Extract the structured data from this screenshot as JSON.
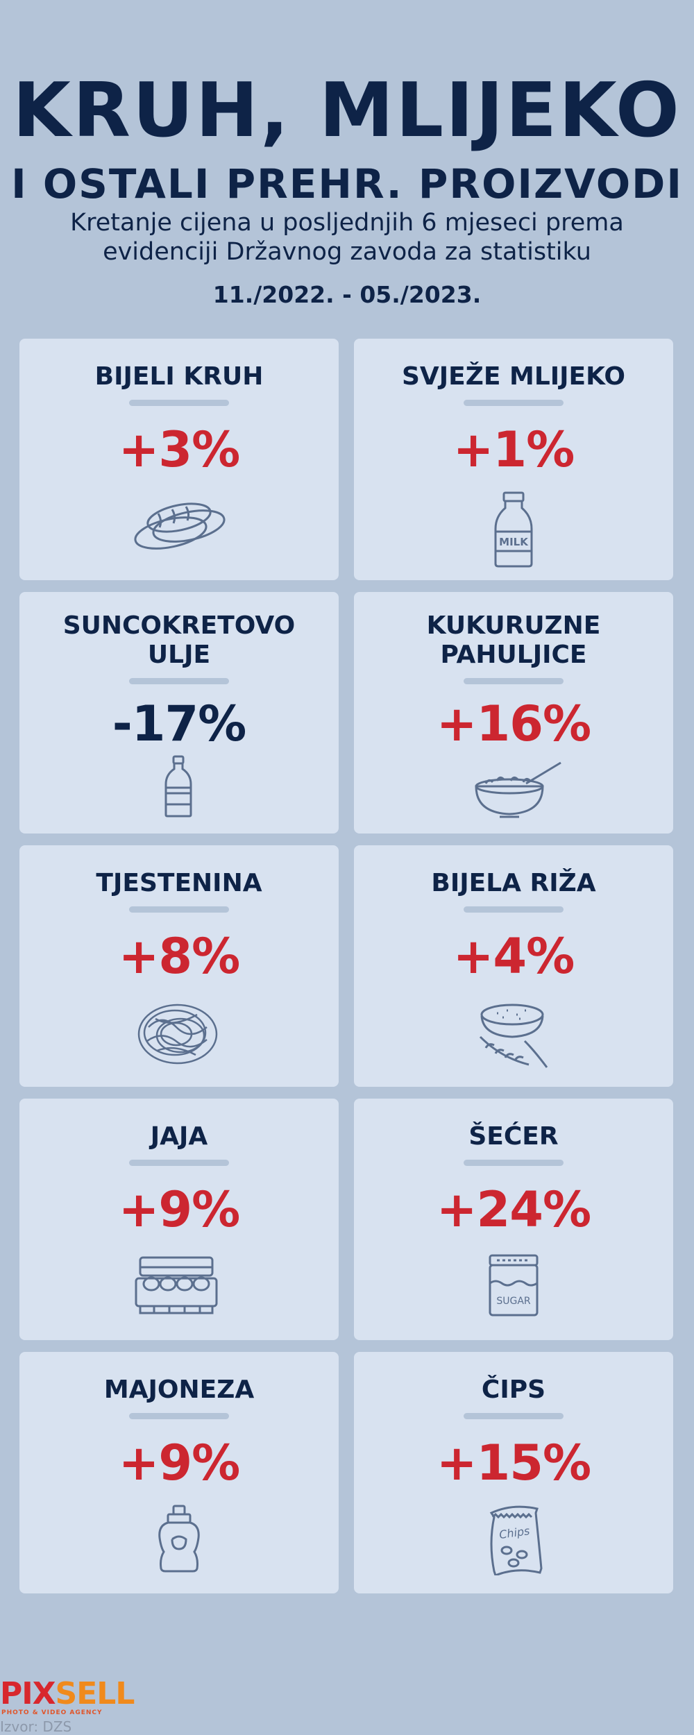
{
  "header": {
    "title_line1": "KRUH, MLIJEKO",
    "title_line2": "I OSTALI PREHR. PROIZVODI",
    "subtitle": "Kretanje cijena u posljednjih 6 mjeseci prema evidenciji Državnog zavoda za statistiku",
    "period": "11./2022. - 05./2023."
  },
  "colors": {
    "increase": "#cc2630",
    "decrease": "#0e2347",
    "background": "#b4c4d8",
    "card": "#d8e2f0"
  },
  "items": [
    {
      "name": "BIJELI KRUH",
      "change": "+3%",
      "icon": "bread-icon"
    },
    {
      "name": "SVJEŽE MLIJEKO",
      "change": "+1%",
      "icon": "milk-bottle-icon",
      "icon_text": "MILK"
    },
    {
      "name": "SUNCOKRETOVO ULJE",
      "change": "-17%",
      "icon": "oil-bottle-icon"
    },
    {
      "name": "KUKURUZNE PAHULJICE",
      "change": "+16%",
      "icon": "cereal-bowl-icon"
    },
    {
      "name": "TJESTENINA",
      "change": "+8%",
      "icon": "pasta-icon"
    },
    {
      "name": "BIJELA RIŽA",
      "change": "+4%",
      "icon": "rice-bowl-icon"
    },
    {
      "name": "JAJA",
      "change": "+9%",
      "icon": "egg-carton-icon"
    },
    {
      "name": "ŠEĆER",
      "change": "+24%",
      "icon": "sugar-jar-icon",
      "icon_text": "SUGAR"
    },
    {
      "name": "MAJONEZA",
      "change": "+9%",
      "icon": "mayonnaise-bottle-icon"
    },
    {
      "name": "ČIPS",
      "change": "+15%",
      "icon": "chips-bag-icon",
      "icon_text": "Chips"
    }
  ],
  "footer": {
    "logo_part1": "PIX",
    "logo_part2": "SELL",
    "tagline": "PHOTO & VIDEO AGENCY",
    "source": "Izvor: DZS"
  }
}
